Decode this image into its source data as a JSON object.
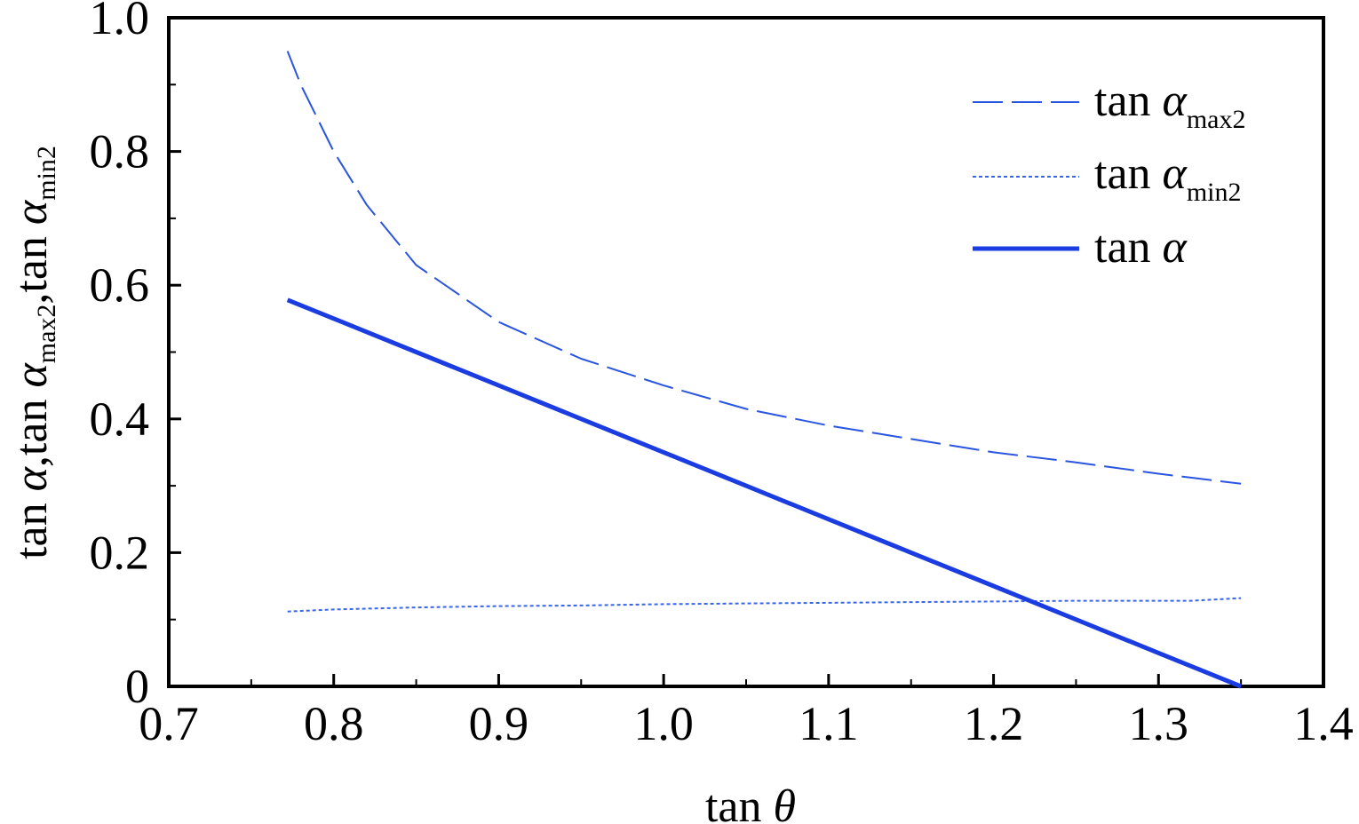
{
  "chart_data": {
    "type": "line",
    "xlim": [
      0.7,
      1.4
    ],
    "ylim": [
      0,
      1.0
    ],
    "x_ticks": [
      "0.7",
      "0.8",
      "0.9",
      "1.0",
      "1.1",
      "1.2",
      "1.3",
      "1.4"
    ],
    "y_ticks": [
      "0",
      "0.2",
      "0.4",
      "0.6",
      "0.8",
      "1.0"
    ],
    "xlabel": {
      "main": "tan ",
      "symbol": "θ"
    },
    "ylabel": {
      "t1": "tan ",
      "s1": "α",
      "p1": ",",
      "t2": "tan ",
      "s2": "α",
      "sub2": "max2",
      "p2": ",",
      "t3": "tan ",
      "s3": "α",
      "sub3": "min2"
    },
    "legend_position": "top-right",
    "grid": false,
    "series": [
      {
        "name": "tan α_max2",
        "legend": {
          "main": "tan ",
          "symbol": "α",
          "sub": "max2"
        },
        "style": "dashed",
        "color": "#2a55e0",
        "x": [
          0.772,
          0.78,
          0.8,
          0.82,
          0.85,
          0.9,
          0.95,
          1.0,
          1.05,
          1.1,
          1.15,
          1.2,
          1.25,
          1.3,
          1.35
        ],
        "y": [
          0.95,
          0.9,
          0.8,
          0.72,
          0.63,
          0.545,
          0.49,
          0.45,
          0.415,
          0.39,
          0.37,
          0.35,
          0.335,
          0.318,
          0.303
        ]
      },
      {
        "name": "tan α_min2",
        "legend": {
          "main": "tan ",
          "symbol": "α",
          "sub": "min2"
        },
        "style": "dotted",
        "color": "#3a66e8",
        "x": [
          0.772,
          0.8,
          0.85,
          0.9,
          0.95,
          1.0,
          1.05,
          1.1,
          1.15,
          1.2,
          1.25,
          1.3,
          1.32,
          1.35
        ],
        "y": [
          0.112,
          0.115,
          0.118,
          0.12,
          0.121,
          0.123,
          0.124,
          0.125,
          0.126,
          0.127,
          0.128,
          0.128,
          0.128,
          0.132
        ]
      },
      {
        "name": "tan α",
        "legend": {
          "main": "tan ",
          "symbol": "α",
          "sub": ""
        },
        "style": "solid",
        "color": "#1a3ce0",
        "x": [
          0.772,
          0.8,
          0.85,
          0.9,
          0.95,
          1.0,
          1.05,
          1.1,
          1.15,
          1.2,
          1.25,
          1.3,
          1.35
        ],
        "y": [
          0.578,
          0.55,
          0.5,
          0.45,
          0.4,
          0.35,
          0.3,
          0.25,
          0.2,
          0.15,
          0.1,
          0.05,
          0.0
        ]
      }
    ]
  }
}
